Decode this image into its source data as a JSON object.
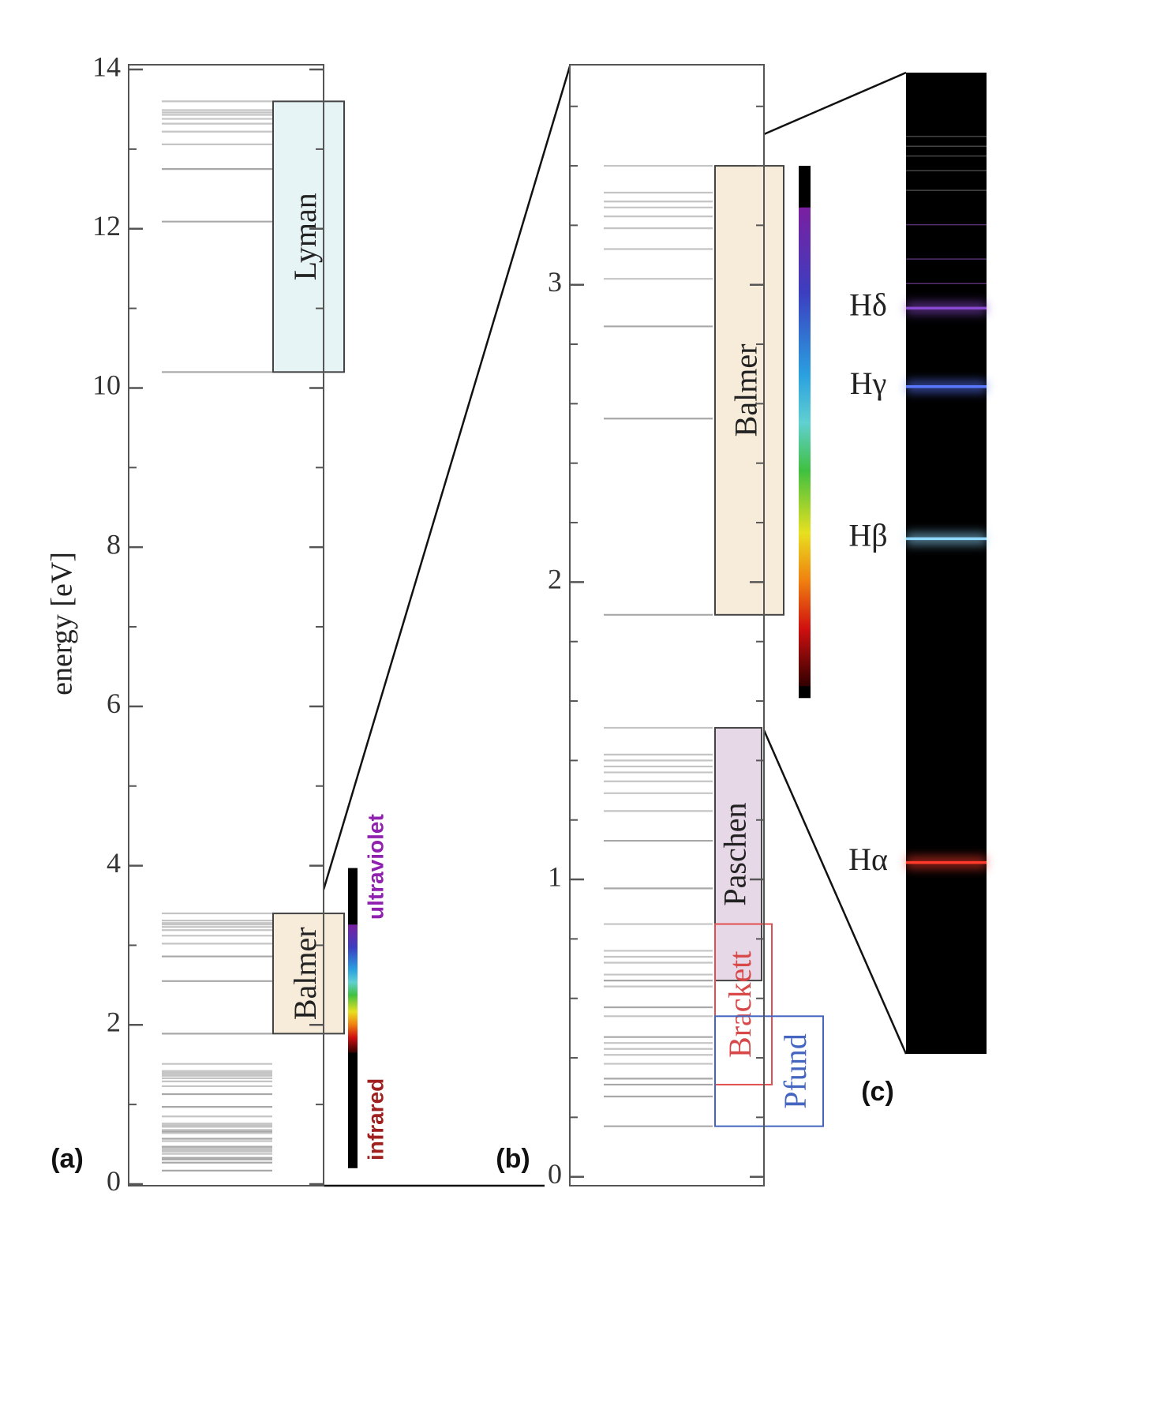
{
  "chart_data": [
    {
      "type": "levels",
      "label": "(a)",
      "ylabel": "energy [eV]",
      "ylim": [
        -0.02,
        14.06
      ],
      "yticks": [
        0,
        2,
        4,
        6,
        8,
        10,
        12,
        14
      ],
      "minor_yticks": [
        1,
        3,
        5,
        7,
        9,
        11,
        13
      ],
      "series": [
        {
          "name": "Lyman",
          "box": "#e6f3f4",
          "label_color": "#222222",
          "values": [
            10.2,
            12.09,
            12.75,
            13.06,
            13.22,
            13.32,
            13.38,
            13.43,
            13.46,
            13.49,
            13.6
          ]
        },
        {
          "name": "Balmer",
          "box": "#f7ebd8",
          "label_color": "#222222",
          "values": [
            1.89,
            2.55,
            2.86,
            3.02,
            3.12,
            3.19,
            3.23,
            3.26,
            3.28,
            3.31,
            3.4
          ]
        },
        {
          "values": [
            0.66,
            0.97,
            1.13,
            1.23,
            1.29,
            1.33,
            1.36,
            1.38,
            1.4,
            1.42,
            1.51
          ]
        },
        {
          "values": [
            0.31,
            0.47,
            0.57,
            0.64,
            0.68,
            0.72,
            0.74,
            0.76,
            0.85
          ]
        },
        {
          "values": [
            0.17,
            0.27,
            0.33,
            0.38,
            0.41,
            0.43,
            0.45,
            0.54
          ]
        }
      ],
      "spectrum": {
        "range": [
          0.2,
          3.97
        ],
        "visible": [
          1.65,
          3.26
        ]
      },
      "uv_label": "ultraviolet",
      "ir_label": "infrared"
    },
    {
      "type": "levels",
      "label": "(b)",
      "ylim": [
        -0.03,
        3.74
      ],
      "yticks": [
        0,
        1,
        2,
        3
      ],
      "minor_yticks": [
        0.2,
        0.4,
        0.6,
        0.8,
        1.2,
        1.4,
        1.6,
        1.8,
        2.2,
        2.4,
        2.6,
        2.8,
        3.2,
        3.4,
        3.6
      ],
      "series": [
        {
          "name": "Balmer",
          "box": "#f7ebd8",
          "label_color": "#222222",
          "values": [
            1.89,
            2.55,
            2.86,
            3.02,
            3.12,
            3.19,
            3.23,
            3.26,
            3.28,
            3.31,
            3.4
          ]
        },
        {
          "name": "Paschen",
          "box": "#e6d6e6",
          "label_color": "#222222",
          "values": [
            0.66,
            0.97,
            1.13,
            1.23,
            1.29,
            1.33,
            1.36,
            1.38,
            1.4,
            1.42,
            1.51
          ]
        },
        {
          "name": "Brackett",
          "edge": "#e05050",
          "label_color": "#d84848",
          "values": [
            0.31,
            0.47,
            0.57,
            0.64,
            0.68,
            0.72,
            0.74,
            0.76,
            0.85
          ]
        },
        {
          "name": "Pfund",
          "edge": "#4466c0",
          "label_color": "#4466c0",
          "values": [
            0.17,
            0.27,
            0.33,
            0.38,
            0.41,
            0.43,
            0.45,
            0.54
          ]
        }
      ],
      "spectrum": {
        "range": [
          1.61,
          3.4
        ],
        "visible": [
          1.65,
          3.26
        ]
      }
    },
    {
      "type": "spectrum",
      "label": "(c)",
      "ylim": [
        1.5,
        3.5
      ],
      "categories": [
        "Hα",
        "Hβ",
        "Hγ",
        "Hδ"
      ],
      "values": [
        1.89,
        2.55,
        2.86,
        3.02
      ],
      "colors": [
        "#ff3a2a",
        "#8fd8ff",
        "#5a78ff",
        "#8a4ad0"
      ],
      "other_lines": [
        3.07,
        3.12,
        3.19,
        3.26,
        3.3,
        3.33,
        3.35,
        3.37
      ]
    }
  ]
}
